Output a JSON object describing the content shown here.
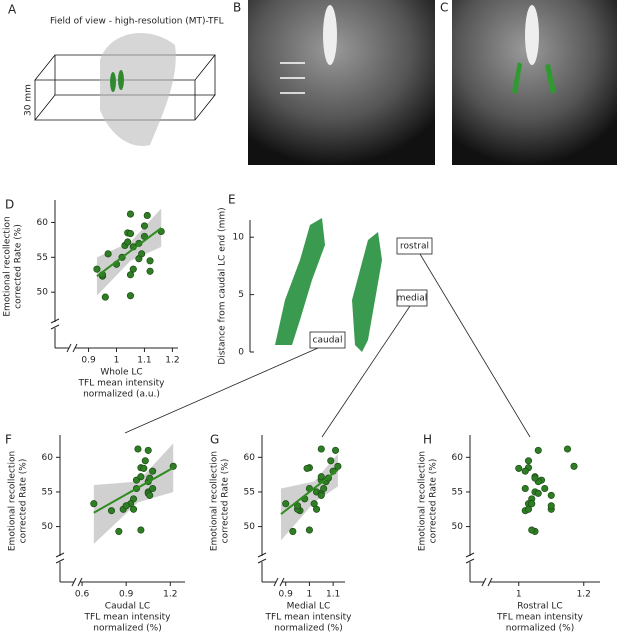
{
  "panels": {
    "a": {
      "label": "A",
      "title": "Field of view - high-resolution (MT)-TFL",
      "scale": "30 mm"
    },
    "b": {
      "label": "B"
    },
    "c": {
      "label": "C"
    }
  },
  "chart_data": [
    {
      "type": "scatter",
      "panel_label": "D",
      "ylabel": [
        "Emotional recollection",
        "corrected Rate (%)"
      ],
      "xlabel": [
        "Whole LC",
        "TFL mean intensity",
        "normalized (a.u.)"
      ],
      "xlim": [
        0.78,
        1.22
      ],
      "xticks": [
        0.9,
        1,
        1.1,
        1.2
      ],
      "ylim": [
        42,
        62.5
      ],
      "yticks": [
        50,
        55,
        60
      ],
      "color": "#2f7d25",
      "fit_color": "#2e8b1e",
      "x": [
        0.93,
        0.95,
        0.96,
        0.95,
        0.97,
        1.0,
        1.02,
        1.03,
        1.04,
        1.04,
        1.05,
        1.05,
        1.06,
        1.06,
        1.05,
        1.05,
        1.08,
        1.08,
        1.09,
        1.1,
        1.1,
        1.11,
        1.12,
        1.12,
        1.16
      ],
      "y": [
        53.3,
        52.3,
        49.3,
        52.5,
        55.5,
        54.0,
        55.0,
        56.7,
        57.2,
        58.5,
        58.4,
        61.2,
        56.5,
        53.3,
        52.5,
        49.5,
        54.8,
        57.0,
        55.5,
        58.0,
        59.5,
        61.0,
        54.5,
        53.0,
        58.7
      ],
      "fit": {
        "x": [
          0.93,
          1.16
        ],
        "y": [
          52.3,
          59.2
        ]
      },
      "ci": {
        "x": [
          0.93,
          1.05,
          1.16
        ],
        "upper": [
          55,
          57.2,
          62
        ],
        "lower": [
          49.5,
          54.5,
          56.5
        ]
      }
    },
    {
      "type": "render",
      "panel_label": "E",
      "ylabel": "Distance from caudal LC end (mm)",
      "ylim": [
        0,
        11.5
      ],
      "yticks": [
        0,
        5,
        10
      ],
      "region_labels": [
        "caudal",
        "medial",
        "rostral"
      ]
    },
    {
      "type": "scatter",
      "panel_label": "F",
      "ylabel": [
        "Emotional recollection",
        "corrected Rate (%)"
      ],
      "xlabel": [
        "Caudal LC",
        "TFL mean intensity",
        "normalized (%)"
      ],
      "xlim": [
        0.45,
        1.3
      ],
      "xticks": [
        0.6,
        0.9,
        1.2
      ],
      "ylim": [
        42,
        62.5
      ],
      "yticks": [
        50,
        55,
        60
      ],
      "color": "#2f7d25",
      "fit_color": "#2e8b1e",
      "x": [
        0.68,
        0.8,
        0.85,
        0.88,
        0.97,
        0.95,
        1.05,
        0.97,
        1.0,
        1.0,
        1.02,
        0.98,
        1.05,
        0.93,
        0.95,
        1.0,
        1.05,
        1.06,
        1.08,
        1.08,
        1.03,
        1.05,
        1.06,
        0.9,
        1.22
      ],
      "y": [
        53.3,
        52.3,
        49.3,
        52.5,
        55.5,
        54.0,
        55.0,
        56.7,
        57.2,
        58.5,
        58.4,
        61.2,
        56.5,
        53.3,
        52.5,
        49.5,
        54.8,
        57.0,
        55.5,
        58.0,
        59.5,
        61.0,
        54.5,
        53.0,
        58.7
      ],
      "fit": {
        "x": [
          0.68,
          1.22
        ],
        "y": [
          52,
          58.5
        ]
      },
      "ci": {
        "x": [
          0.68,
          0.98,
          1.22
        ],
        "upper": [
          56,
          56.5,
          62
        ],
        "lower": [
          47.5,
          53.5,
          55
        ]
      }
    },
    {
      "type": "scatter",
      "panel_label": "G",
      "ylabel": [
        "Emotional recollection",
        "corrected Rate (%)"
      ],
      "xlabel": [
        "Medial LC",
        "TFL mean intensity",
        "normalized (%)"
      ],
      "xlim": [
        0.8,
        1.15
      ],
      "xticks": [
        0.9,
        1,
        1.1
      ],
      "ylim": [
        42,
        62.5
      ],
      "yticks": [
        50,
        55,
        60
      ],
      "color": "#2f7d25",
      "fit_color": "#2e8b1e",
      "x": [
        0.9,
        0.96,
        0.93,
        0.95,
        1.0,
        0.98,
        1.03,
        1.05,
        1.05,
        1.0,
        0.99,
        1.05,
        1.07,
        1.02,
        1.03,
        1.0,
        1.05,
        1.08,
        1.06,
        1.1,
        1.09,
        1.11,
        1.05,
        0.95,
        1.12
      ],
      "y": [
        53.3,
        52.3,
        49.3,
        52.5,
        55.5,
        54.0,
        55.0,
        56.7,
        57.2,
        58.5,
        58.4,
        61.2,
        56.5,
        53.3,
        52.5,
        49.5,
        54.8,
        57.0,
        55.5,
        58.0,
        59.5,
        61.0,
        54.5,
        53.0,
        58.7
      ],
      "fit": {
        "x": [
          0.88,
          1.12
        ],
        "y": [
          51.8,
          58.2
        ]
      },
      "ci": {
        "x": [
          0.88,
          1.02,
          1.12
        ],
        "upper": [
          55.5,
          56.5,
          60.5
        ],
        "lower": [
          48,
          53.5,
          55.8
        ]
      }
    },
    {
      "type": "scatter",
      "panel_label": "H",
      "ylabel": [
        "Emotional recollection",
        "corrected Rate (%)"
      ],
      "xlabel": [
        "Rostral LC",
        "TFL mean intensity",
        "normalized (%)"
      ],
      "xlim": [
        0.85,
        1.25
      ],
      "xticks": [
        1,
        1.2
      ],
      "ylim": [
        42,
        62.5
      ],
      "yticks": [
        50,
        55,
        60
      ],
      "color": "#2f7d25",
      "x": [
        1.03,
        1.02,
        1.05,
        1.03,
        1.02,
        1.04,
        1.05,
        1.07,
        1.05,
        1.03,
        1.0,
        1.15,
        1.06,
        1.04,
        1.1,
        1.04,
        1.06,
        1.05,
        1.08,
        1.02,
        1.03,
        1.06,
        1.1,
        1.1,
        1.17
      ],
      "y": [
        53.3,
        52.3,
        49.3,
        52.5,
        55.5,
        54.0,
        55.0,
        56.7,
        57.2,
        58.5,
        58.4,
        61.2,
        56.5,
        53.3,
        52.5,
        49.5,
        54.8,
        57.0,
        55.5,
        58.0,
        59.5,
        61.0,
        54.5,
        53.0,
        58.7
      ]
    }
  ]
}
